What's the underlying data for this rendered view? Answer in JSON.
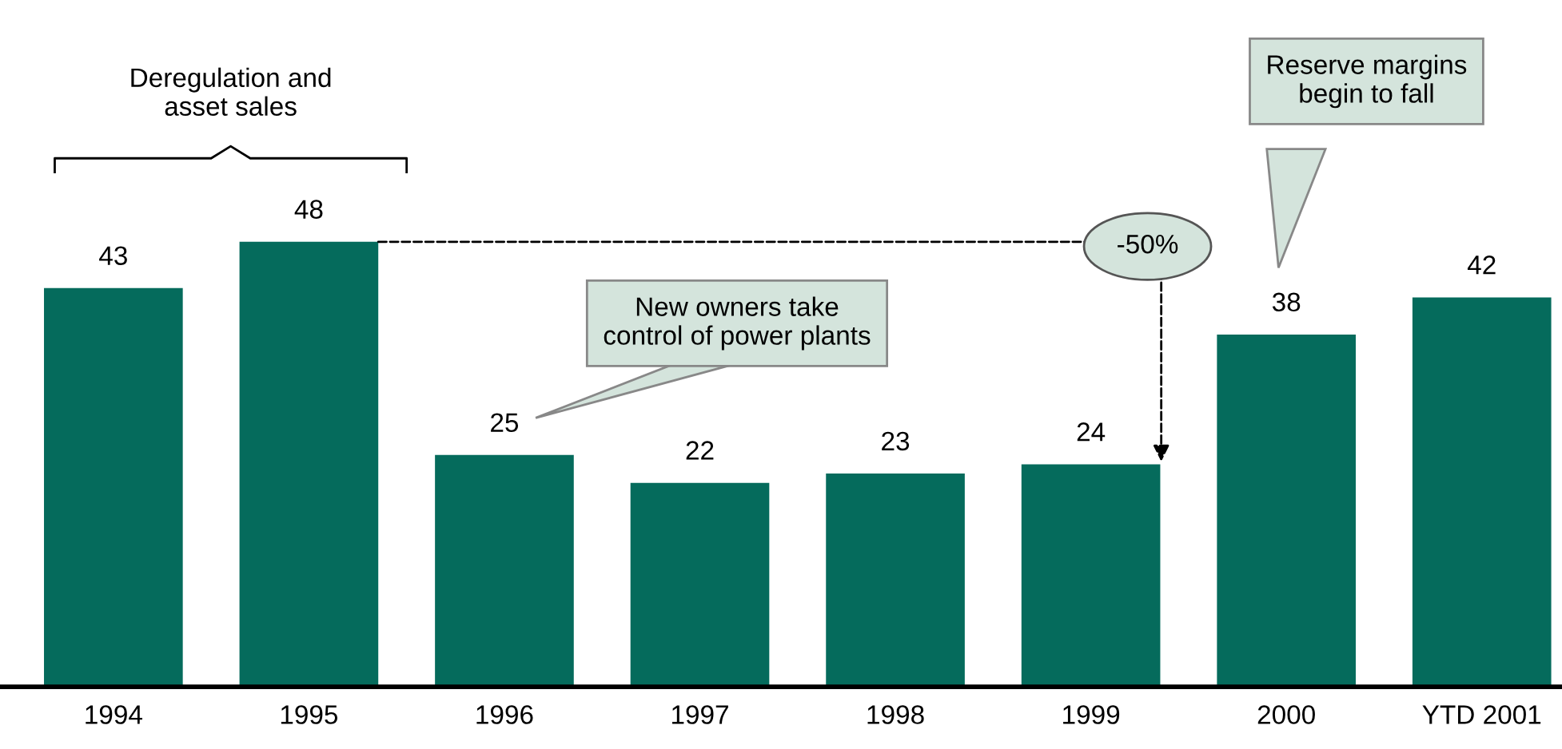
{
  "chart_data": {
    "type": "bar",
    "categories": [
      "1994",
      "1995",
      "1996",
      "1997",
      "1998",
      "1999",
      "2000",
      "YTD 2001"
    ],
    "values": [
      43,
      48,
      25,
      22,
      23,
      24,
      38,
      42
    ],
    "color": "#056b5c",
    "data_labels": true,
    "tick_labels": "x",
    "grid": false,
    "legend": false,
    "annotations": [
      {
        "text": "Deregulation and\nasset sales"
      },
      {
        "text": "New owners take\ncontrol of power plants"
      },
      {
        "text": "Reserve margins\nbegin to fall"
      },
      {
        "text": "-50%"
      }
    ]
  }
}
